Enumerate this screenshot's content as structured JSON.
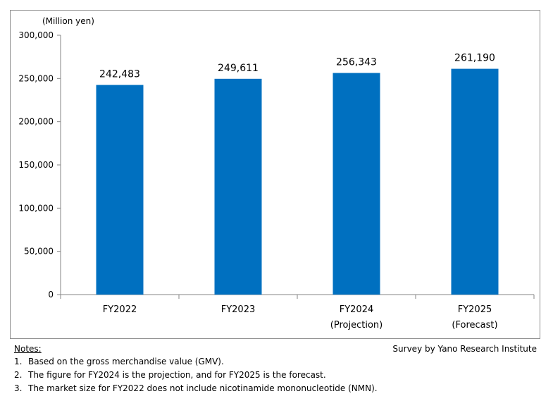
{
  "chart_data": {
    "type": "bar",
    "unit_label": "(Million yen)",
    "categories": [
      [
        "FY2022"
      ],
      [
        "FY2023"
      ],
      [
        "FY2024",
        "(Projection)"
      ],
      [
        "FY2025",
        "(Forecast)"
      ]
    ],
    "values": [
      242483,
      249611,
      256343,
      261190
    ],
    "data_labels": [
      "242,483",
      "249,611",
      "256,343",
      "261,190"
    ],
    "ylim": [
      0,
      300000
    ],
    "yticks": [
      0,
      50000,
      100000,
      150000,
      200000,
      250000,
      300000
    ],
    "ytick_labels": [
      "0",
      "50,000",
      "100,000",
      "150,000",
      "200,000",
      "250,000",
      "300,000"
    ],
    "bar_color": "#0070c0",
    "grid": false,
    "legend": false
  },
  "footer": {
    "notes_title": "Notes:",
    "source": "Survey by Yano Research Institute",
    "notes": [
      {
        "num": "1.",
        "text": "Based on the gross merchandise value (GMV)."
      },
      {
        "num": "2.",
        "text": "The figure for FY2024 is the projection, and for FY2025 is the forecast."
      },
      {
        "num": "3.",
        "text": "The market size for FY2022 does not include nicotinamide mononucleotide (NMN)."
      }
    ]
  }
}
